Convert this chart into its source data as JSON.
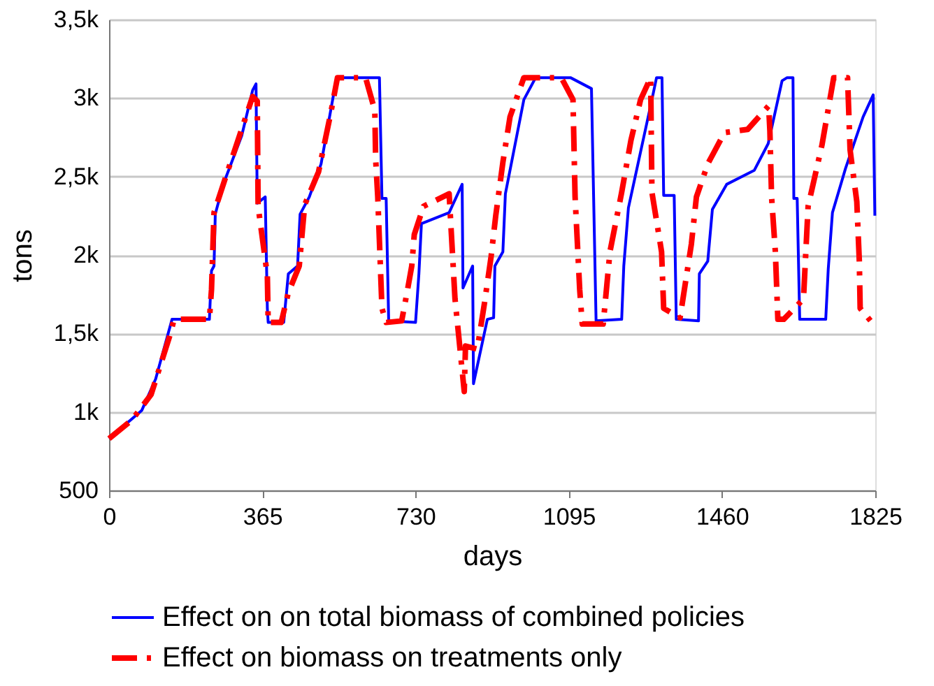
{
  "chart_data": {
    "type": "line",
    "xlabel": "days",
    "ylabel": "tons",
    "xlim": [
      0,
      1825
    ],
    "xticks": [
      0,
      365,
      730,
      1095,
      1460,
      1825
    ],
    "ylim": [
      500,
      3500
    ],
    "yticks": [
      500,
      {
        "value": 1000,
        "label": "1k"
      },
      {
        "value": 1500,
        "label": "1,5k"
      },
      {
        "value": 2000,
        "label": "2k"
      },
      {
        "value": 2500,
        "label": "2,5k"
      },
      {
        "value": 3000,
        "label": "3k"
      },
      {
        "value": 3500,
        "label": "3,5k"
      }
    ],
    "grid": "y",
    "legend": "bottom",
    "marker": "none",
    "series": [
      {
        "name": "Effect on on total biomass of combined policies",
        "color": "#0000ff",
        "line_style": "solid",
        "x": [
          0,
          78,
          111,
          150,
          239,
          244,
          250,
          253,
          272,
          316,
          342,
          350,
          353,
          372,
          377,
          379,
          416,
          427,
          449,
          455,
          477,
          505,
          542,
          644,
          650,
          660,
          666,
          730,
          738,
          744,
          810,
          841,
          843,
          866,
          868,
          901,
          916,
          919,
          938,
          944,
          988,
          1016,
          1099,
          1149,
          1160,
          1221,
          1226,
          1237,
          1293,
          1304,
          1317,
          1321,
          1346,
          1351,
          1404,
          1406,
          1426,
          1437,
          1471,
          1537,
          1570,
          1603,
          1615,
          1629,
          1631,
          1639,
          1645,
          1707,
          1713,
          1723,
          1754,
          1796,
          1820,
          1824
        ],
        "values": [
          830,
          1010,
          1210,
          1590,
          1590,
          1900,
          1930,
          2260,
          2450,
          2760,
          3050,
          3090,
          2330,
          2370,
          1660,
          1570,
          1570,
          1880,
          1930,
          2260,
          2370,
          2580,
          3130,
          3130,
          2360,
          2360,
          1580,
          1570,
          1880,
          2200,
          2270,
          2450,
          1790,
          1930,
          1180,
          1590,
          1600,
          1930,
          2020,
          2390,
          2990,
          3130,
          3130,
          3060,
          1580,
          1590,
          1930,
          2300,
          2990,
          3130,
          3130,
          2380,
          2380,
          1590,
          1580,
          1880,
          1960,
          2290,
          2450,
          2540,
          2710,
          3110,
          3130,
          3130,
          2360,
          2360,
          1590,
          1590,
          1910,
          2270,
          2550,
          2880,
          3020,
          2250
        ]
      },
      {
        "name": "Effect on biomass on treatments only",
        "color": "#ff0000",
        "line_style": "dashed",
        "x": [
          0,
          55,
          100,
          144,
          155,
          239,
          244,
          250,
          272,
          342,
          353,
          355,
          377,
          379,
          410,
          427,
          453,
          466,
          499,
          527,
          544,
          611,
          633,
          635,
          640,
          650,
          660,
          697,
          711,
          721,
          727,
          749,
          810,
          824,
          846,
          849,
          877,
          894,
          910,
          921,
          938,
          955,
          988,
          1077,
          1105,
          1110,
          1121,
          1127,
          1177,
          1193,
          1221,
          1243,
          1266,
          1290,
          1293,
          1316,
          1321,
          1360,
          1387,
          1399,
          1426,
          1466,
          1521,
          1571,
          1574,
          1578,
          1587,
          1593,
          1607,
          1654,
          1665,
          1698,
          1726,
          1759,
          1765,
          1781,
          1787,
          1789,
          1814,
          1822
        ],
        "values": [
          830,
          950,
          1110,
          1480,
          1590,
          1590,
          1780,
          2270,
          2450,
          3010,
          2980,
          2310,
          1870,
          1570,
          1570,
          1760,
          1930,
          2320,
          2530,
          2890,
          3130,
          3130,
          2920,
          2610,
          2370,
          1660,
          1570,
          1580,
          1780,
          1930,
          2130,
          2310,
          2390,
          1720,
          1130,
          1420,
          1400,
          1690,
          1990,
          2250,
          2590,
          2880,
          3130,
          3130,
          2990,
          2370,
          1780,
          1560,
          1560,
          2020,
          2400,
          2730,
          2990,
          3130,
          2400,
          2020,
          1660,
          1600,
          2070,
          2370,
          2580,
          2780,
          2800,
          2950,
          2790,
          2370,
          2020,
          1590,
          1590,
          1720,
          2310,
          2700,
          3130,
          3130,
          2670,
          2340,
          1960,
          1660,
          1580,
          1580
        ]
      }
    ]
  }
}
